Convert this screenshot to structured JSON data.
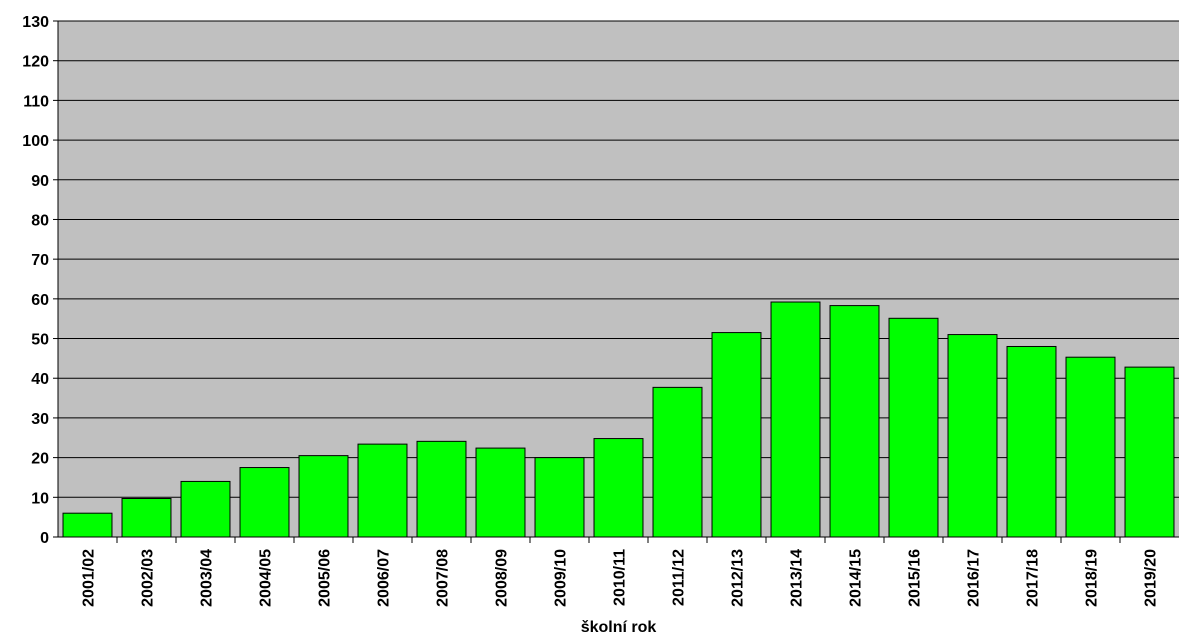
{
  "chart_data": {
    "type": "bar",
    "title": "",
    "xlabel": "školní rok",
    "ylabel": "",
    "ylim": [
      0,
      130
    ],
    "yticks": [
      0,
      10,
      20,
      30,
      40,
      50,
      60,
      70,
      80,
      90,
      100,
      110,
      120,
      130
    ],
    "grid": true,
    "legend": "none",
    "categories": [
      "2001/02",
      "2002/03",
      "2003/04",
      "2004/05",
      "2005/06",
      "2006/07",
      "2007/08",
      "2008/09",
      "2009/10",
      "2010/11",
      "2011/12",
      "2012/13",
      "2013/14",
      "2014/15",
      "2015/16",
      "2016/17",
      "2017/18",
      "2018/19",
      "2019/20"
    ],
    "values": [
      6,
      9.7,
      14,
      17.5,
      20.5,
      23.4,
      24.1,
      22.4,
      20,
      24.8,
      37.7,
      51.5,
      59.2,
      58.3,
      55.1,
      51,
      48,
      45.3,
      42.8
    ],
    "colors": {
      "bar_fill": "#00ff00",
      "bar_stroke": "#000000",
      "plot_background": "#c0c0c0",
      "gridline": "#000000"
    }
  }
}
